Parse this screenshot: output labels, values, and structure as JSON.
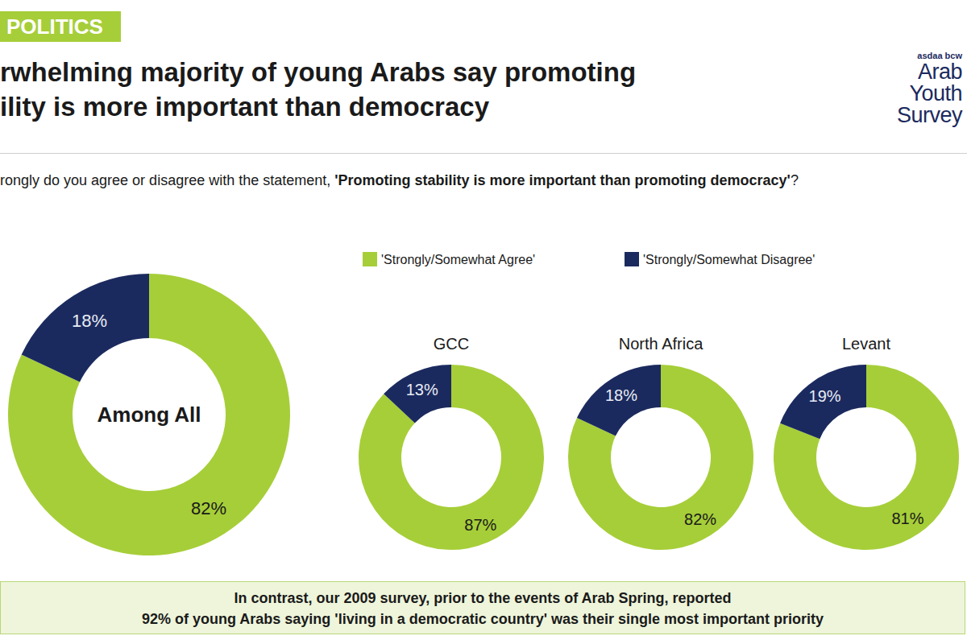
{
  "header": {
    "section": "POLITICS",
    "title_lines": [
      "rwhelming majority of young Arabs say promoting",
      "ility is more important than democracy"
    ],
    "question": {
      "plain": "rongly do you agree or disagree with the statement, ",
      "emphasis": "'Promoting stability is more important than promoting democracy'",
      "end": "?"
    }
  },
  "logo": {
    "small": "asdaa bcw",
    "lines": [
      "Arab",
      "Youth",
      "Survey"
    ]
  },
  "footer": [
    "In contrast, our 2009 survey, prior to the events of Arab Spring, reported",
    "92% of young Arabs saying 'living in a democratic country' was their single most important priority"
  ],
  "chart_data": [
    {
      "type": "pie",
      "title": "Among All",
      "categories": [
        "'Strongly/Somewhat Agree'",
        "'Strongly/Somewhat Disagree'"
      ],
      "values": [
        82,
        18
      ],
      "value_labels": [
        "82%",
        "18%"
      ],
      "colors": [
        "#a6ce39",
        "#1b2a5e"
      ],
      "data_labels": true,
      "legend": "top"
    },
    {
      "type": "pie",
      "title": "GCC",
      "categories": [
        "'Strongly/Somewhat Agree'",
        "'Strongly/Somewhat Disagree'"
      ],
      "values": [
        87,
        13
      ],
      "value_labels": [
        "87%",
        "13%"
      ],
      "colors": [
        "#a6ce39",
        "#1b2a5e"
      ],
      "data_labels": true,
      "legend": "top"
    },
    {
      "type": "pie",
      "title": "North Africa",
      "categories": [
        "'Strongly/Somewhat Agree'",
        "'Strongly/Somewhat Disagree'"
      ],
      "values": [
        82,
        18
      ],
      "value_labels": [
        "82%",
        "18%"
      ],
      "colors": [
        "#a6ce39",
        "#1b2a5e"
      ],
      "data_labels": true,
      "legend": "top"
    },
    {
      "type": "pie",
      "title": "Levant",
      "categories": [
        "'Strongly/Somewhat Agree'",
        "'Strongly/Somewhat Disagree'"
      ],
      "values": [
        81,
        19
      ],
      "value_labels": [
        "81%",
        "19%"
      ],
      "colors": [
        "#a6ce39",
        "#1b2a5e"
      ],
      "data_labels": true,
      "legend": "top"
    }
  ]
}
